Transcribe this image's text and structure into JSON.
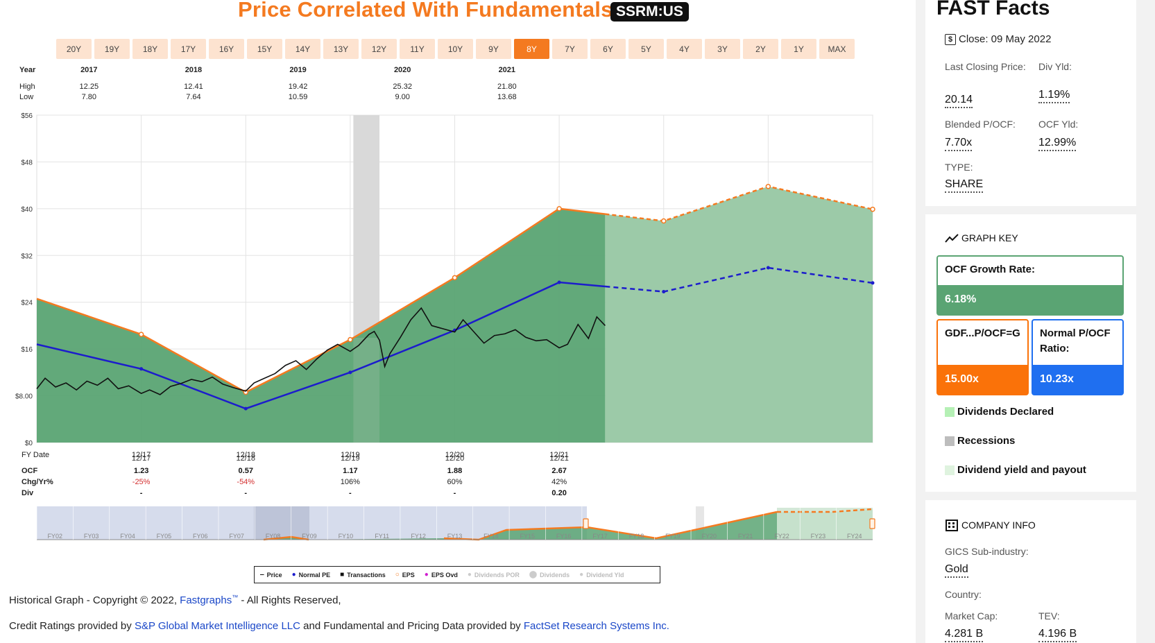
{
  "header": {
    "title": "Price Correlated With Fundamentals",
    "ticker": "SSRM:US",
    "ranges": [
      "20Y",
      "19Y",
      "18Y",
      "17Y",
      "16Y",
      "15Y",
      "14Y",
      "13Y",
      "12Y",
      "11Y",
      "10Y",
      "9Y",
      "8Y",
      "7Y",
      "6Y",
      "5Y",
      "4Y",
      "3Y",
      "2Y",
      "1Y",
      "MAX"
    ],
    "active_range": "8Y"
  },
  "year_table": {
    "labels": {
      "year": "Year",
      "high": "High",
      "low": "Low"
    },
    "columns": [
      {
        "year": "2017",
        "high": "12.25",
        "low": "7.80"
      },
      {
        "year": "2018",
        "high": "12.41",
        "low": "7.64"
      },
      {
        "year": "2019",
        "high": "19.42",
        "low": "10.59"
      },
      {
        "year": "2020",
        "high": "25.32",
        "low": "9.00"
      },
      {
        "year": "2021",
        "high": "21.80",
        "low": "13.68"
      }
    ]
  },
  "fy_table": {
    "labels": {
      "fy": "FY Date",
      "ocf": "OCF",
      "chg": "Chg/Yr%",
      "div": "Div"
    },
    "columns": [
      {
        "date": "12/17",
        "ocf": "1.23",
        "chg": "-25%",
        "div": "-"
      },
      {
        "date": "12/18",
        "ocf": "0.57",
        "chg": "-54%",
        "div": "-"
      },
      {
        "date": "12/19",
        "ocf": "1.17",
        "chg": "106%",
        "div": "-"
      },
      {
        "date": "12/20",
        "ocf": "1.88",
        "chg": "60%",
        "div": "-"
      },
      {
        "date": "12/21",
        "ocf": "2.67",
        "chg": "42%",
        "div": "0.20"
      }
    ]
  },
  "navigator": {
    "labels": [
      "FY02",
      "FY03",
      "FY04",
      "FY05",
      "FY06",
      "FY07",
      "FY08",
      "FY09",
      "FY10",
      "FY11",
      "FY12",
      "FY13",
      "FY14",
      "FY15",
      "FY16",
      "FY17",
      "FY18",
      "FY19",
      "FY20",
      "FY21",
      "FY22",
      "FY23",
      "FY24"
    ]
  },
  "legend": {
    "items": [
      {
        "symbol": "‒",
        "label": "Price",
        "color": "#111111",
        "active": true
      },
      {
        "symbol": "●",
        "label": "Normal PE",
        "color": "#1c1ccc",
        "active": true
      },
      {
        "symbol": "■",
        "label": "Transactions",
        "color": "#111111",
        "active": true
      },
      {
        "symbol": "○",
        "label": "EPS",
        "color": "#f47a20",
        "active": true
      },
      {
        "symbol": "●",
        "label": "EPS Ovd",
        "color": "#d01ed0",
        "active": true
      },
      {
        "symbol": "●",
        "label": "Dividends POR",
        "color": "#cccccc",
        "active": false
      },
      {
        "symbol": "⬤",
        "label": "Dividends",
        "color": "#cccccc",
        "active": false
      },
      {
        "symbol": "●",
        "label": "Dividend Yld",
        "color": "#cccccc",
        "active": false
      }
    ]
  },
  "footer": {
    "line1_pre": "Historical Graph - Copyright © 2022, ",
    "line1_link": "Fastgraphs",
    "line1_tm": "™",
    "line1_post": " - All Rights Reserved,",
    "line2_pre": "Credit Ratings provided by ",
    "line2_link1": "S&P Global Market Intelligence LLC",
    "line2_mid": " and Fundamental and Pricing Data provided by ",
    "line2_link2": "FactSet Research Systems Inc."
  },
  "fast_facts": {
    "title": "FAST Facts",
    "close_label": "Close: 09 May 2022",
    "last_closing_label": "Last Closing Price:",
    "last_closing_value": "20.14",
    "div_yld_label": "Div Yld:",
    "div_yld_value": "1.19%",
    "blended_label": "Blended P/OCF:",
    "blended_value": "7.70x",
    "ocf_yld_label": "OCF Yld:",
    "ocf_yld_value": "12.99%",
    "type_label": "TYPE:",
    "type_value": "SHARE"
  },
  "graph_key": {
    "title": "GRAPH KEY",
    "growth_label": "OCF Growth Rate:",
    "growth_value": "6.18%",
    "gdf_label": "GDF...P/OCF=G",
    "gdf_value": "15.00x",
    "normal_label": "Normal P/OCF Ratio:",
    "normal_value": "10.23x",
    "key_dividends": "Dividends Declared",
    "key_recessions": "Recessions",
    "key_yield": "Dividend yield and payout",
    "colors": {
      "green": "#5aa473",
      "orange": "#fa7209",
      "blue": "#1f6ff0"
    }
  },
  "company_info": {
    "title": "COMPANY INFO",
    "gics_label": "GICS Sub-industry:",
    "gics_value": "Gold",
    "country_label": "Country:",
    "mcap_label": "Market Cap:",
    "mcap_value": "4.281 B",
    "tev_label": "TEV:",
    "tev_value": "4.196 B"
  },
  "chart_data": {
    "type": "area",
    "y_ticks": [
      "$0",
      "$8.00",
      "$16",
      "$24",
      "$32",
      "$40",
      "$48",
      "$56"
    ],
    "ylim": [
      0,
      56
    ],
    "x_ticks": [
      "12/17",
      "12/18",
      "12/19",
      "12/20",
      "12/21"
    ],
    "fundamental_series": {
      "name": "EPS",
      "x": [
        2016.92,
        2017.92,
        2018.92,
        2019.92,
        2020.92,
        2021.92,
        2022.92,
        2023.92,
        2024.92
      ],
      "values": [
        24.6,
        18.5,
        8.6,
        17.6,
        28.2,
        40.0,
        37.9,
        43.8,
        39.9
      ],
      "estimate_from_index": 6
    },
    "normal_series": {
      "name": "Normal PE",
      "x": [
        2016.92,
        2017.92,
        2018.92,
        2019.92,
        2020.92,
        2021.92,
        2022.92,
        2023.92,
        2024.92
      ],
      "values": [
        16.8,
        12.6,
        5.8,
        12.0,
        19.2,
        27.4,
        25.8,
        29.9,
        27.3
      ],
      "estimate_from_index": 6
    },
    "price_series": {
      "name": "Price",
      "x": [
        2016.92,
        2017.0,
        2017.1,
        2017.2,
        2017.3,
        2017.4,
        2017.5,
        2017.6,
        2017.7,
        2017.8,
        2017.92,
        2018.0,
        2018.1,
        2018.2,
        2018.3,
        2018.4,
        2018.5,
        2018.6,
        2018.7,
        2018.8,
        2018.92,
        2019.0,
        2019.1,
        2019.2,
        2019.3,
        2019.4,
        2019.5,
        2019.6,
        2019.7,
        2019.8,
        2019.92,
        2020.0,
        2020.1,
        2020.15,
        2020.2,
        2020.25,
        2020.3,
        2020.4,
        2020.5,
        2020.6,
        2020.7,
        2020.8,
        2020.92,
        2021.0,
        2021.1,
        2021.2,
        2021.3,
        2021.4,
        2021.5,
        2021.6,
        2021.7,
        2021.8,
        2021.92,
        2022.0,
        2022.1,
        2022.2,
        2022.28,
        2022.36
      ],
      "values": [
        9.2,
        11.0,
        9.5,
        10.2,
        9.0,
        10.5,
        9.8,
        11.0,
        9.2,
        9.7,
        8.4,
        9.0,
        8.2,
        9.6,
        10.1,
        10.8,
        10.4,
        11.2,
        10.0,
        9.4,
        8.8,
        10.2,
        11.0,
        11.8,
        13.2,
        14.0,
        12.5,
        14.3,
        15.8,
        16.8,
        15.6,
        16.6,
        18.5,
        19.0,
        17.5,
        13.0,
        15.2,
        18.0,
        21.0,
        23.0,
        20.0,
        19.5,
        18.9,
        21.0,
        19.0,
        17.0,
        18.3,
        18.6,
        19.3,
        18.0,
        17.4,
        17.6,
        16.2,
        16.8,
        20.2,
        17.8,
        21.5,
        20.0
      ],
      "actual_ends_at": 2022.36
    },
    "recession": {
      "from": 2019.95,
      "to": 2020.2
    },
    "xlim": [
      2016.92,
      2024.92
    ]
  }
}
